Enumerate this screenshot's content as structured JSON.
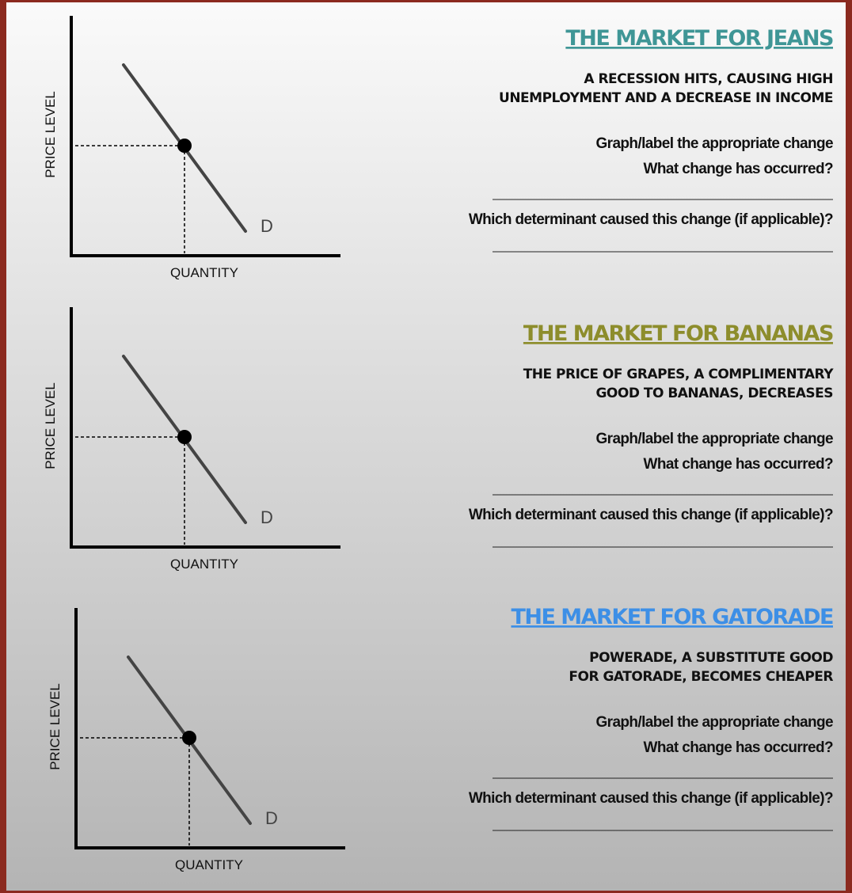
{
  "sections": [
    {
      "title": "THE MARKET FOR JEANS",
      "scenario": [
        "A RECESSION HITS, CAUSING HIGH",
        "UNEMPLOYMENT AND A DECREASE IN INCOME"
      ],
      "prompt": "Graph/label the appropriate change",
      "question_change": "What change has occurred?",
      "question_determinant": "Which determinant caused this change (if applicable)?",
      "graph": {
        "y_label": "PRICE LEVEL",
        "x_label": "QUANTITY",
        "curve_label": "D"
      }
    },
    {
      "title": "THE MARKET FOR BANANAS",
      "scenario": [
        "THE PRICE OF GRAPES, A COMPLIMENTARY",
        "GOOD TO BANANAS, DECREASES"
      ],
      "prompt": "Graph/label the appropriate change",
      "question_change": "What change has occurred?",
      "question_determinant": "Which determinant caused this change (if applicable)?",
      "graph": {
        "y_label": "PRICE LEVEL",
        "x_label": "QUANTITY",
        "curve_label": "D"
      }
    },
    {
      "title": "THE MARKET FOR GATORADE",
      "scenario": [
        "POWERADE, A SUBSTITUTE GOOD",
        "FOR GATORADE, BECOMES CHEAPER"
      ],
      "prompt": "Graph/label the appropriate change",
      "question_change": "What change has occurred?",
      "question_determinant": "Which determinant caused this change (if applicable)?",
      "graph": {
        "y_label": "PRICE LEVEL",
        "x_label": "QUANTITY",
        "curve_label": "D"
      }
    }
  ]
}
